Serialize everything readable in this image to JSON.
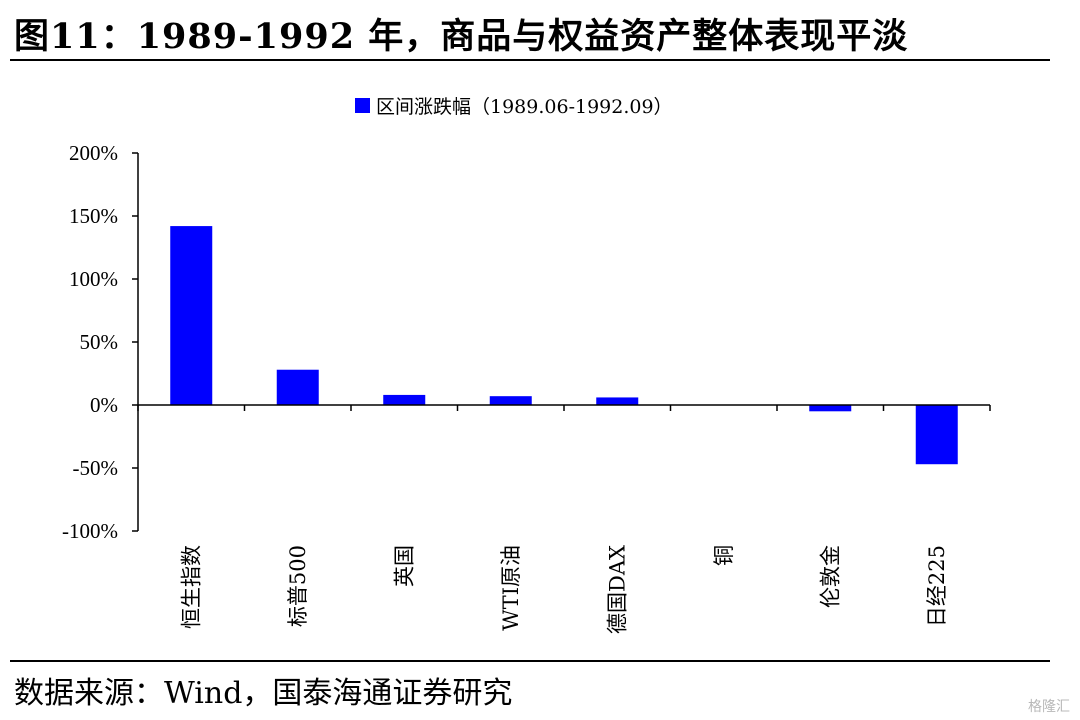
{
  "header": {
    "title": "图11：1989-1992 年，商品与权益资产整体表现平淡"
  },
  "footer": {
    "source": "数据来源：Wind，国泰海通证券研究",
    "watermark": "格隆汇"
  },
  "chart_data": {
    "type": "bar",
    "categories": [
      "恒生指数",
      "标普500",
      "英国",
      "WTI原油",
      "德国DAX",
      "铜",
      "伦敦金",
      "日经225"
    ],
    "series": [
      {
        "name": "区间涨跌幅（1989.06-1992.09）",
        "values": [
          142,
          28,
          8,
          7,
          6,
          0,
          -5,
          -47
        ],
        "color": "#0000FF"
      }
    ],
    "y_ticks": [
      200,
      150,
      100,
      50,
      0,
      -50,
      -100
    ],
    "y_tick_labels": [
      "200%",
      "150%",
      "100%",
      "50%",
      "0%",
      "-50%",
      "-100%"
    ],
    "ylim": [
      -100,
      200
    ],
    "legend_position": "top-center",
    "grid": false
  }
}
